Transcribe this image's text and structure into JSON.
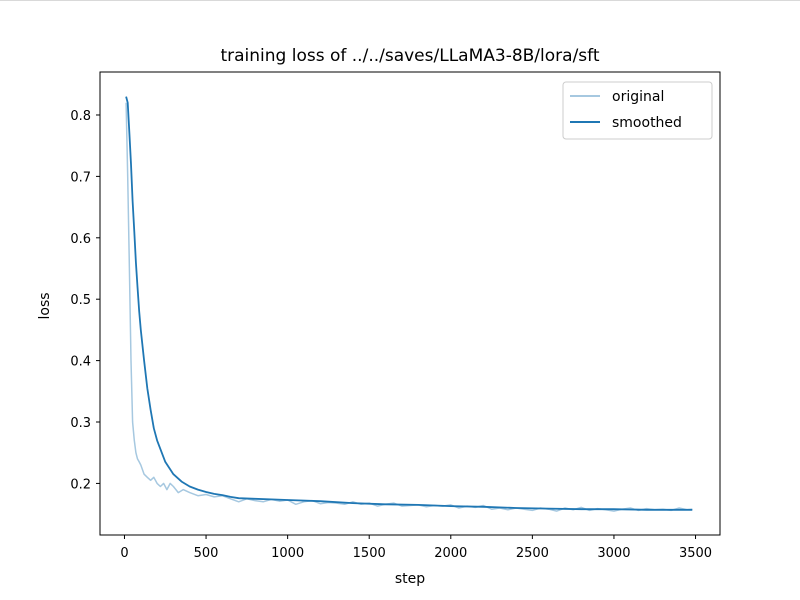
{
  "chart_data": {
    "type": "line",
    "title": "training loss of ../../saves/LLaMA3-8B/lora/sft",
    "xlabel": "step",
    "ylabel": "loss",
    "xlim": [
      -150,
      3650
    ],
    "ylim": [
      0.116,
      0.87
    ],
    "xticks": [
      0,
      500,
      1000,
      1500,
      2000,
      2500,
      3000,
      3500
    ],
    "yticks": [
      0.2,
      0.3,
      0.4,
      0.5,
      0.6,
      0.7,
      0.8
    ],
    "legend": {
      "position": "top-right"
    },
    "grid": false,
    "series": [
      {
        "name": "original",
        "color": "#a6c8e0",
        "x": [
          10,
          20,
          30,
          40,
          50,
          60,
          70,
          80,
          90,
          100,
          120,
          140,
          160,
          180,
          200,
          220,
          240,
          260,
          280,
          300,
          330,
          360,
          400,
          450,
          500,
          550,
          600,
          650,
          700,
          750,
          800,
          850,
          900,
          950,
          1000,
          1050,
          1100,
          1150,
          1200,
          1250,
          1300,
          1350,
          1400,
          1450,
          1500,
          1550,
          1600,
          1650,
          1700,
          1750,
          1800,
          1850,
          1900,
          1950,
          2000,
          2050,
          2100,
          2150,
          2200,
          2250,
          2300,
          2350,
          2400,
          2450,
          2500,
          2550,
          2600,
          2650,
          2700,
          2750,
          2800,
          2850,
          2900,
          2950,
          3000,
          3050,
          3100,
          3150,
          3200,
          3250,
          3300,
          3350,
          3400,
          3450,
          3480
        ],
        "y": [
          0.82,
          0.7,
          0.55,
          0.4,
          0.3,
          0.27,
          0.25,
          0.24,
          0.235,
          0.23,
          0.215,
          0.21,
          0.205,
          0.21,
          0.2,
          0.195,
          0.2,
          0.19,
          0.2,
          0.195,
          0.185,
          0.19,
          0.185,
          0.18,
          0.182,
          0.178,
          0.18,
          0.175,
          0.17,
          0.175,
          0.172,
          0.17,
          0.174,
          0.171,
          0.173,
          0.166,
          0.17,
          0.172,
          0.167,
          0.169,
          0.168,
          0.166,
          0.17,
          0.166,
          0.168,
          0.163,
          0.166,
          0.168,
          0.163,
          0.164,
          0.165,
          0.162,
          0.164,
          0.163,
          0.165,
          0.16,
          0.163,
          0.161,
          0.164,
          0.158,
          0.16,
          0.157,
          0.16,
          0.158,
          0.156,
          0.16,
          0.158,
          0.155,
          0.16,
          0.157,
          0.161,
          0.156,
          0.159,
          0.157,
          0.155,
          0.158,
          0.16,
          0.156,
          0.159,
          0.157,
          0.158,
          0.156,
          0.16,
          0.157,
          0.158
        ]
      },
      {
        "name": "smoothed",
        "color": "#1f77b4",
        "x": [
          10,
          20,
          30,
          40,
          50,
          60,
          70,
          80,
          90,
          100,
          120,
          140,
          160,
          180,
          200,
          250,
          300,
          350,
          400,
          450,
          500,
          550,
          600,
          650,
          700,
          800,
          900,
          1000,
          1200,
          1400,
          1600,
          1800,
          2000,
          2200,
          2400,
          2600,
          2800,
          3000,
          3200,
          3400,
          3480
        ],
        "y": [
          0.83,
          0.82,
          0.77,
          0.72,
          0.66,
          0.61,
          0.56,
          0.52,
          0.48,
          0.45,
          0.4,
          0.355,
          0.32,
          0.29,
          0.27,
          0.235,
          0.215,
          0.203,
          0.195,
          0.19,
          0.186,
          0.183,
          0.181,
          0.178,
          0.176,
          0.175,
          0.174,
          0.173,
          0.171,
          0.168,
          0.166,
          0.165,
          0.163,
          0.162,
          0.16,
          0.159,
          0.158,
          0.158,
          0.157,
          0.157,
          0.157
        ]
      }
    ]
  }
}
